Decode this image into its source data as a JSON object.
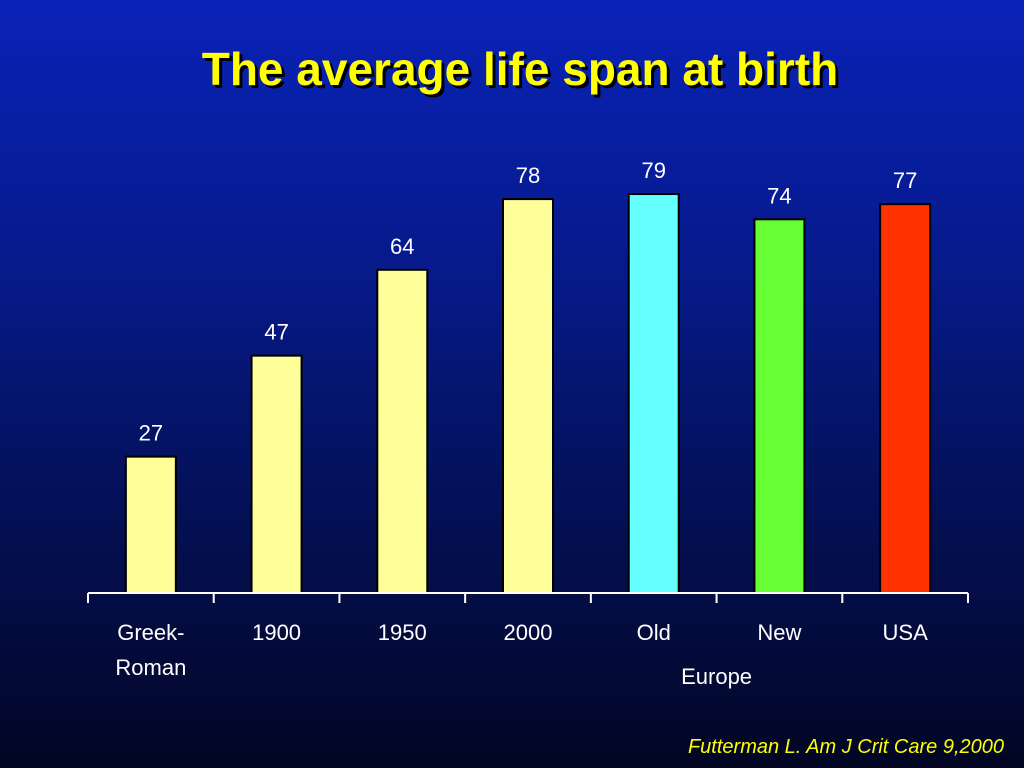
{
  "title": "The average life span at birth",
  "citation": "Futterman L. Am J Crit Care 9,2000",
  "chart_data": {
    "type": "bar",
    "title": "The average life span at birth",
    "xlabel": "",
    "ylabel": "",
    "ylim": [
      0,
      80
    ],
    "grid": false,
    "legend": "none",
    "categories": [
      {
        "lines": [
          "Greek-",
          "Roman"
        ],
        "value": 27,
        "color": "#ffff99"
      },
      {
        "lines": [
          "1900"
        ],
        "value": 47,
        "color": "#ffff99"
      },
      {
        "lines": [
          "1950"
        ],
        "value": 64,
        "color": "#ffff99"
      },
      {
        "lines": [
          "2000"
        ],
        "value": 78,
        "color": "#ffff99"
      },
      {
        "lines": [
          "Old"
        ],
        "value": 79,
        "color": "#66ffff"
      },
      {
        "lines": [
          "New"
        ],
        "value": 74,
        "color": "#66ff33"
      },
      {
        "lines": [
          "USA"
        ],
        "value": 77,
        "color": "#ff3300"
      }
    ],
    "group_labels": [
      {
        "text": "Europe",
        "categories": [
          "Old",
          "New"
        ]
      }
    ]
  }
}
